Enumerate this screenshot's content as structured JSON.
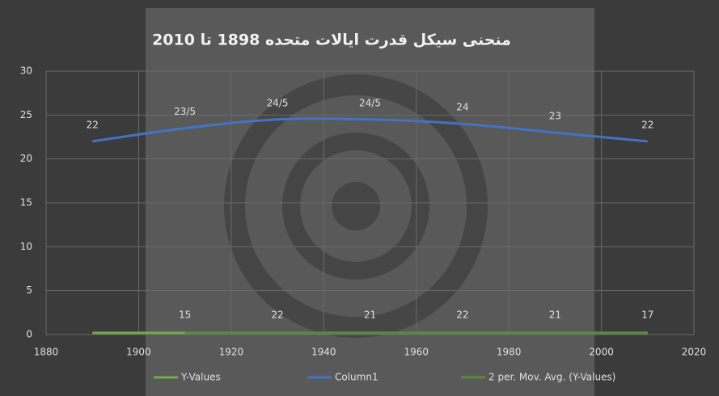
{
  "chart_data": {
    "type": "line",
    "title": "منحنی سیکل قدرت ایالات متحده 1898 تا 2010",
    "x": [
      1890,
      1910,
      1930,
      1950,
      1970,
      1990,
      2010
    ],
    "series": [
      {
        "name": "Y-Values",
        "color": "#70ad47",
        "values": [
          0.2,
          0.2,
          0.2,
          0.2,
          0.2,
          0.2,
          0.2
        ]
      },
      {
        "name": "Column1",
        "color": "#4472c4",
        "values": [
          22,
          23.5,
          24.5,
          24.5,
          24,
          23,
          22
        ],
        "value_labels": [
          "22",
          "23/5",
          "24/5",
          "24/5",
          "24",
          "23",
          "22"
        ]
      },
      {
        "name": "2 per. Mov. Avg. (Y-Values)",
        "color": "#5a8a3a",
        "values": [
          null,
          0.2,
          0.2,
          0.2,
          0.2,
          0.2,
          0.2
        ]
      }
    ],
    "annotations": [
      {
        "x": 1910,
        "text": "15"
      },
      {
        "x": 1930,
        "text": "22"
      },
      {
        "x": 1950,
        "text": "21"
      },
      {
        "x": 1970,
        "text": "22"
      },
      {
        "x": 1990,
        "text": "21"
      },
      {
        "x": 2010,
        "text": "17"
      }
    ],
    "xlim": [
      1880,
      2020
    ],
    "xticks": [
      1880,
      1900,
      1920,
      1940,
      1960,
      1980,
      2000,
      2020
    ],
    "ylim": [
      0,
      30
    ],
    "yticks": [
      0,
      5,
      10,
      15,
      20,
      25,
      30
    ],
    "grid": true
  }
}
